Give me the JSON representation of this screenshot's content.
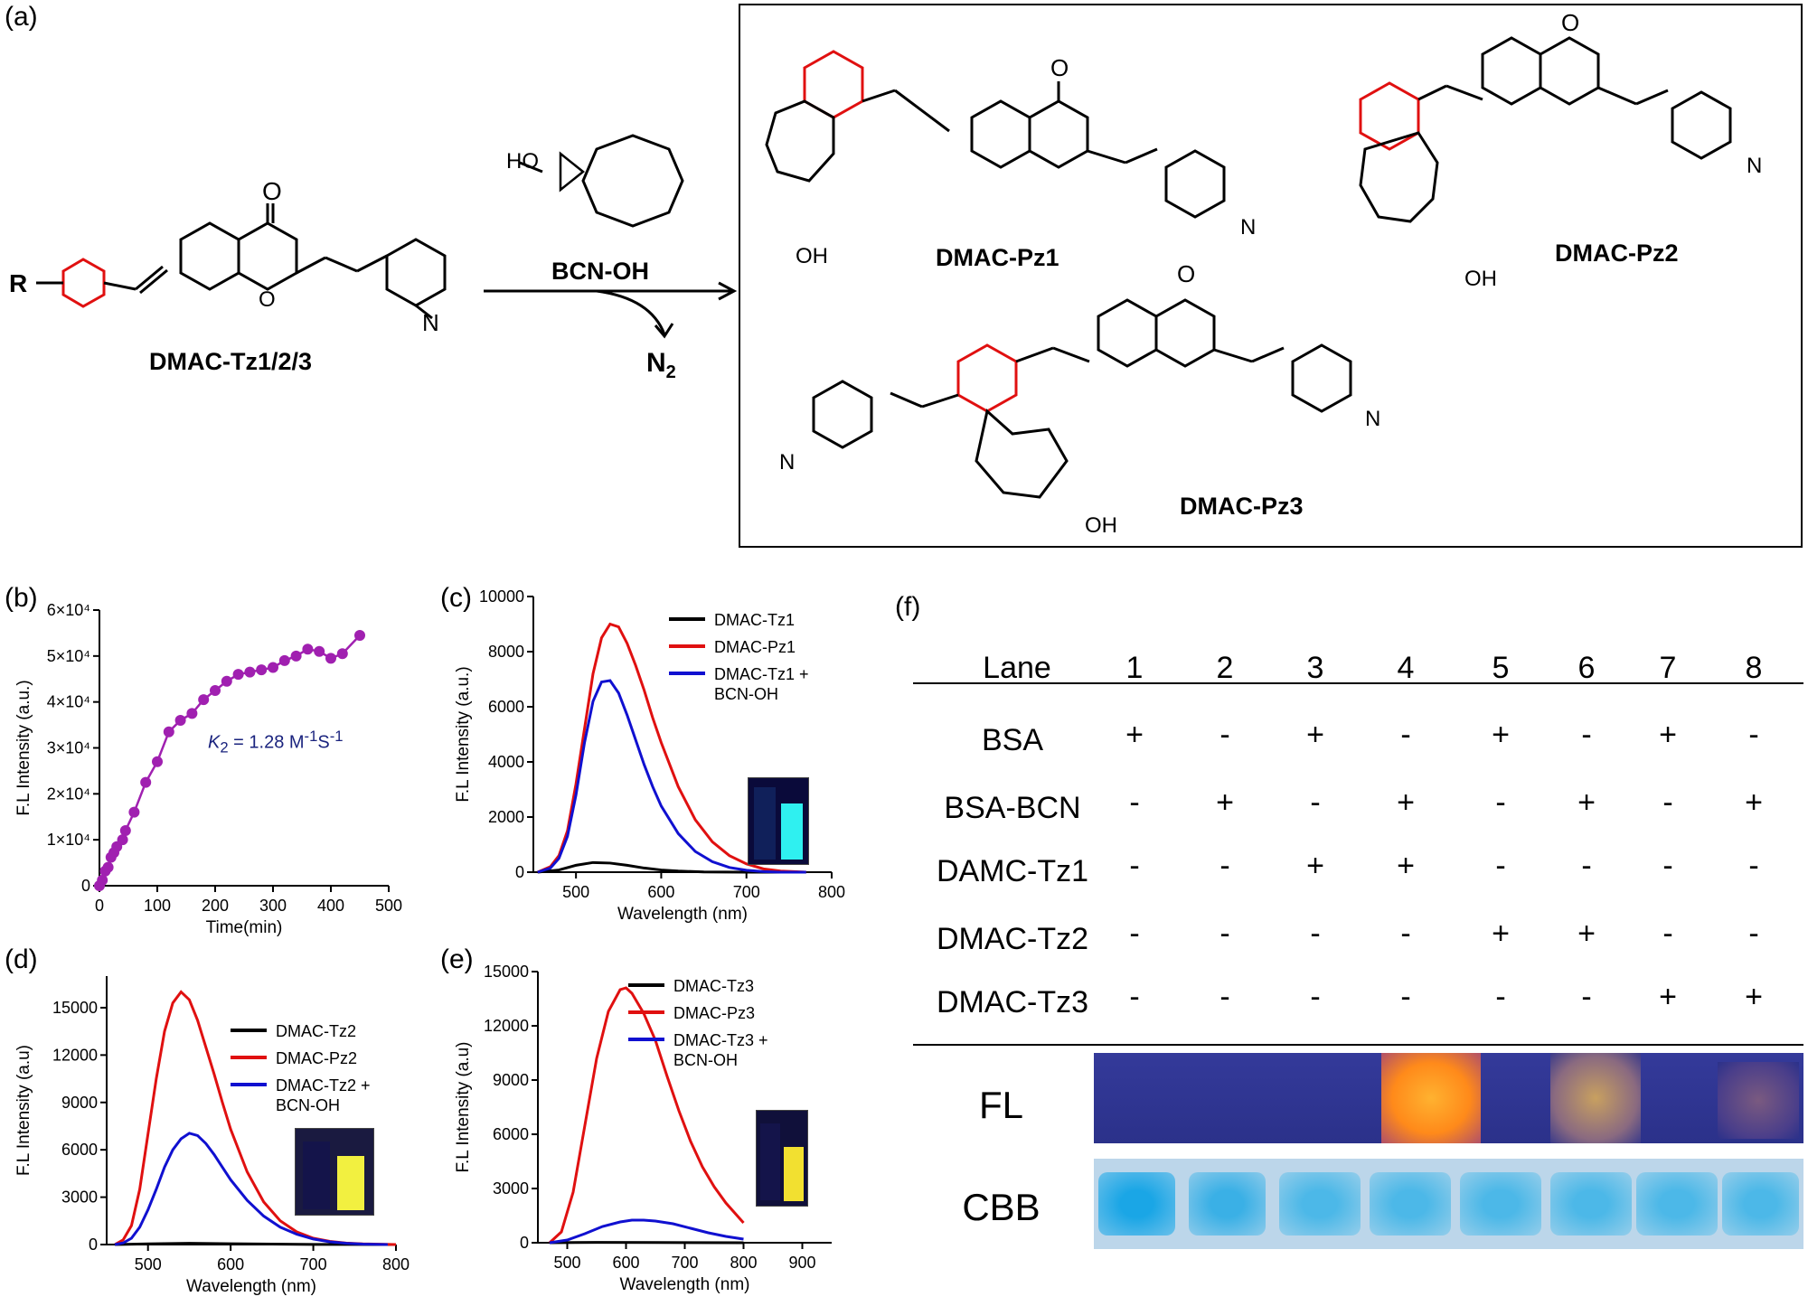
{
  "panel_labels": {
    "a": "(a)",
    "b": "(b)",
    "c": "(c)",
    "d": "(d)",
    "e": "(e)",
    "f": "(f)"
  },
  "scheme": {
    "reactant": "DMAC-Tz1/2/3",
    "reagent": "BCN-OH",
    "byproduct": "N",
    "byproduct_sub": "2",
    "substituent": "R",
    "products": [
      "DMAC-Pz1",
      "DMAC-Pz2",
      "DMAC-Pz3"
    ],
    "atoms": {
      "O": "O",
      "N": "N",
      "H": "H",
      "OH": "OH",
      "HO": "HO"
    }
  },
  "chart_data": [
    {
      "id": "b",
      "type": "scatter",
      "xlabel": "Time(min)",
      "ylabel": "F.L Intensity (a.u.)",
      "xlim": [
        0,
        500
      ],
      "ylim": [
        0,
        60000
      ],
      "xticks": [
        "0",
        "100",
        "200",
        "300",
        "400",
        "500"
      ],
      "yticks": [
        "0",
        "1×10⁴",
        "2×10⁴",
        "3×10⁴",
        "4×10⁴",
        "5×10⁴",
        "6×10⁴"
      ],
      "annotation": {
        "k": "K",
        "k_sub": "2",
        "value": " = 1.28  M",
        "m_sup": "-1",
        "s": "S",
        "s_sup": "-1"
      },
      "color": "#a020b0",
      "series": [
        {
          "x": [
            0,
            5,
            10,
            15,
            20,
            25,
            30,
            40,
            45,
            60,
            80,
            100,
            120,
            140,
            160,
            180,
            200,
            220,
            240,
            260,
            280,
            300,
            320,
            340,
            360,
            380,
            400,
            420,
            450
          ],
          "y": [
            0,
            1200,
            3200,
            4000,
            6200,
            7200,
            8500,
            10000,
            12000,
            16000,
            22500,
            27000,
            33500,
            36000,
            37500,
            40500,
            42500,
            44500,
            46000,
            46500,
            47000,
            47500,
            49000,
            50000,
            51500,
            51000,
            49500,
            50500,
            54500
          ]
        }
      ]
    },
    {
      "id": "c",
      "type": "line",
      "xlabel": "Wavelength (nm)",
      "ylabel": "F.L Intensity (a.u.)",
      "xlim": [
        450,
        800
      ],
      "ylim": [
        0,
        10000
      ],
      "xticks": [
        "500",
        "600",
        "700",
        "800"
      ],
      "yticks": [
        "0",
        "2000",
        "4000",
        "6000",
        "8000",
        "10000"
      ],
      "legend": "top-right",
      "series": [
        {
          "name": "DMAC-Tz1",
          "color": "#000000",
          "x": [
            455,
            480,
            500,
            520,
            540,
            560,
            580,
            600,
            620,
            650,
            700,
            770
          ],
          "y": [
            0,
            80,
            250,
            350,
            330,
            250,
            150,
            80,
            40,
            10,
            0,
            0
          ]
        },
        {
          "name": "DMAC-Pz1",
          "color": "#e01010",
          "x": [
            455,
            470,
            480,
            490,
            500,
            510,
            520,
            530,
            540,
            550,
            560,
            570,
            580,
            590,
            600,
            620,
            640,
            660,
            680,
            700,
            720,
            740,
            770
          ],
          "y": [
            0,
            200,
            600,
            1500,
            3200,
            5200,
            7200,
            8500,
            9000,
            8900,
            8300,
            7500,
            6600,
            5600,
            4700,
            3100,
            1900,
            1100,
            600,
            300,
            120,
            40,
            0
          ]
        },
        {
          "name": "DMAC-Tz1 +\nBCN-OH",
          "color": "#1010d0",
          "x": [
            455,
            470,
            480,
            490,
            500,
            510,
            520,
            530,
            540,
            550,
            560,
            570,
            580,
            590,
            600,
            620,
            640,
            660,
            680,
            700,
            720,
            740,
            770
          ],
          "y": [
            0,
            150,
            500,
            1300,
            2800,
            4700,
            6200,
            6900,
            6950,
            6500,
            5700,
            4800,
            3900,
            3100,
            2400,
            1400,
            750,
            380,
            170,
            70,
            20,
            0,
            0
          ]
        }
      ]
    },
    {
      "id": "d",
      "type": "line",
      "xlabel": "Wavelength (nm)",
      "ylabel": "F.L Intensity (a.u)",
      "xlim": [
        450,
        800
      ],
      "ylim": [
        0,
        17000
      ],
      "xticks": [
        "500",
        "600",
        "700",
        "800"
      ],
      "yticks": [
        "0",
        "3000",
        "6000",
        "9000",
        "12000",
        "15000"
      ],
      "legend": "top-right",
      "series": [
        {
          "name": "DMAC-Tz2",
          "color": "#000000",
          "x": [
            460,
            500,
            550,
            600,
            700,
            800
          ],
          "y": [
            0,
            40,
            80,
            50,
            10,
            0
          ]
        },
        {
          "name": "DMAC-Pz2",
          "color": "#e01010",
          "x": [
            460,
            470,
            480,
            490,
            500,
            510,
            520,
            530,
            540,
            550,
            560,
            570,
            580,
            590,
            600,
            620,
            640,
            660,
            680,
            700,
            720,
            740,
            760,
            800
          ],
          "y": [
            0,
            300,
            1200,
            3500,
            7000,
            10500,
            13500,
            15300,
            16000,
            15500,
            14200,
            12500,
            10800,
            9000,
            7300,
            4600,
            2700,
            1500,
            800,
            400,
            200,
            90,
            40,
            0
          ]
        },
        {
          "name": "DMAC-Tz2 +\nBCN-OH",
          "color": "#1010d0",
          "x": [
            460,
            470,
            480,
            490,
            500,
            510,
            520,
            530,
            540,
            550,
            560,
            570,
            580,
            590,
            600,
            620,
            640,
            660,
            680,
            700,
            720,
            740,
            760,
            790
          ],
          "y": [
            0,
            100,
            400,
            1100,
            2200,
            3500,
            4900,
            6000,
            6700,
            7050,
            6900,
            6400,
            5700,
            4900,
            4100,
            2800,
            1800,
            1100,
            650,
            350,
            170,
            80,
            30,
            0
          ]
        }
      ]
    },
    {
      "id": "e",
      "type": "line",
      "xlabel": "Wavelength (nm)",
      "ylabel": "F.L Intensity (a.u)",
      "xlim": [
        450,
        950
      ],
      "ylim": [
        0,
        15000
      ],
      "xticks": [
        "500",
        "600",
        "700",
        "800",
        "900"
      ],
      "yticks": [
        "0",
        "3000",
        "6000",
        "9000",
        "12000",
        "15000"
      ],
      "legend": "top-right",
      "series": [
        {
          "name": "DMAC-Tz3",
          "color": "#000000",
          "x": [
            470,
            550,
            650,
            800
          ],
          "y": [
            0,
            20,
            10,
            0
          ]
        },
        {
          "name": "DMAC-Pz3",
          "color": "#e01010",
          "x": [
            470,
            490,
            510,
            530,
            550,
            570,
            590,
            600,
            610,
            630,
            650,
            670,
            690,
            710,
            730,
            750,
            770,
            800
          ],
          "y": [
            0,
            600,
            2800,
            6500,
            10200,
            12800,
            14000,
            14100,
            13800,
            12700,
            11200,
            9200,
            7300,
            5600,
            4200,
            3100,
            2200,
            1100
          ]
        },
        {
          "name": "DMAC-Tz3 +\nBCN-OH",
          "color": "#1010d0",
          "x": [
            470,
            500,
            530,
            560,
            590,
            610,
            630,
            650,
            680,
            710,
            740,
            770,
            800
          ],
          "y": [
            0,
            150,
            500,
            900,
            1150,
            1250,
            1250,
            1200,
            1050,
            800,
            550,
            350,
            200
          ]
        }
      ]
    },
    {
      "id": "f",
      "type": "table",
      "columns": [
        "Lane",
        "1",
        "2",
        "3",
        "4",
        "5",
        "6",
        "7",
        "8"
      ],
      "rows": [
        {
          "label": "BSA",
          "cells": [
            "+",
            "-",
            "+",
            "-",
            "+",
            "-",
            "+",
            "-"
          ]
        },
        {
          "label": "BSA-BCN",
          "cells": [
            "-",
            "+",
            "-",
            "+",
            "-",
            "+",
            "-",
            "+"
          ]
        },
        {
          "label": "DAMC-Tz1",
          "cells": [
            "-",
            "-",
            "+",
            "+",
            "-",
            "-",
            "-",
            "-"
          ]
        },
        {
          "label": "DMAC-Tz2",
          "cells": [
            "-",
            "-",
            "-",
            "-",
            "+",
            "+",
            "-",
            "-"
          ]
        },
        {
          "label": "DMAC-Tz3",
          "cells": [
            "-",
            "-",
            "-",
            "-",
            "-",
            "-",
            "+",
            "+"
          ]
        }
      ],
      "gels": {
        "fl_label": "FL",
        "cbb_label": "CBB"
      }
    }
  ]
}
